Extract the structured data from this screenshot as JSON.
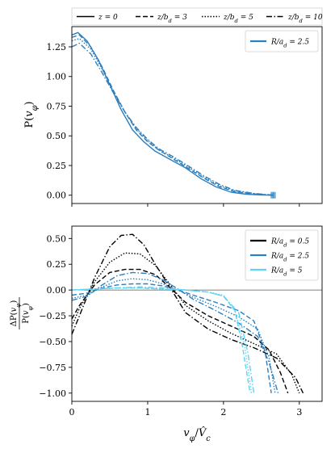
{
  "chart_data": [
    {
      "type": "line",
      "ylabel": "P(v_φ)",
      "xlim": [
        0,
        3.3
      ],
      "ylim": [
        -0.07,
        1.42
      ],
      "yticks": [
        "0.00",
        "0.25",
        "0.50",
        "0.75",
        "1.00",
        "1.25"
      ],
      "ytick_values": [
        0,
        0.25,
        0.5,
        0.75,
        1.0,
        1.25
      ],
      "legend_top": [
        {
          "label": "z = 0",
          "dash": "solid"
        },
        {
          "label": "z/b_d = 3",
          "dash": "dashed"
        },
        {
          "label": "z/b_d = 5",
          "dash": "dotted"
        },
        {
          "label": "z/b_d = 10",
          "dash": "dashdot"
        }
      ],
      "legend": [
        {
          "label": "R/a_d = 2.5",
          "color": "#2d7fbd"
        }
      ],
      "legend_position": "top-right",
      "series": [
        {
          "name": "R/a_d = 2.5",
          "dash": "solid",
          "color": "#2d7fbd",
          "x": [
            0.0,
            0.08,
            0.2,
            0.35,
            0.5,
            0.65,
            0.8,
            0.95,
            1.1,
            1.3,
            1.5,
            1.7,
            1.9,
            2.1,
            2.3,
            2.5,
            2.65
          ],
          "y": [
            1.35,
            1.37,
            1.3,
            1.14,
            0.93,
            0.72,
            0.55,
            0.45,
            0.37,
            0.3,
            0.23,
            0.14,
            0.07,
            0.025,
            0.008,
            0.002,
            0.0
          ]
        },
        {
          "name": "",
          "dash": "dashed",
          "color": "#2d7fbd",
          "x": [
            0.0,
            0.1,
            0.25,
            0.4,
            0.55,
            0.7,
            0.85,
            1.0,
            1.15,
            1.35,
            1.55,
            1.75,
            1.95,
            2.15,
            2.4,
            2.63
          ],
          "y": [
            1.33,
            1.35,
            1.25,
            1.08,
            0.88,
            0.7,
            0.55,
            0.45,
            0.38,
            0.3,
            0.22,
            0.14,
            0.07,
            0.03,
            0.01,
            0.0
          ]
        },
        {
          "name": "",
          "dash": "dotted",
          "color": "#2d7fbd",
          "x": [
            0.0,
            0.1,
            0.25,
            0.4,
            0.55,
            0.7,
            0.85,
            1.0,
            1.15,
            1.35,
            1.55,
            1.75,
            1.95,
            2.15,
            2.4,
            2.66
          ],
          "y": [
            1.3,
            1.32,
            1.23,
            1.06,
            0.87,
            0.7,
            0.56,
            0.46,
            0.38,
            0.31,
            0.23,
            0.15,
            0.08,
            0.035,
            0.012,
            0.0
          ]
        },
        {
          "name": "",
          "dash": "dashdot",
          "color": "#2d7fbd",
          "x": [
            0.0,
            0.1,
            0.25,
            0.4,
            0.55,
            0.7,
            0.85,
            1.0,
            1.15,
            1.35,
            1.55,
            1.75,
            1.95,
            2.15,
            2.4,
            2.68
          ],
          "y": [
            1.25,
            1.28,
            1.19,
            1.03,
            0.86,
            0.7,
            0.57,
            0.47,
            0.39,
            0.32,
            0.24,
            0.16,
            0.09,
            0.04,
            0.015,
            0.0
          ]
        }
      ]
    },
    {
      "type": "line",
      "xlabel": "v_φ / V̂_c",
      "ylabel": "ΔP(v_φ) / P(v_φ)",
      "xlim": [
        0,
        3.3
      ],
      "ylim": [
        -1.08,
        0.62
      ],
      "xticks": [
        "0",
        "1",
        "2",
        "3"
      ],
      "xtick_values": [
        0,
        1,
        2,
        3
      ],
      "yticks": [
        "0.50",
        "0.25",
        "0.00",
        "−0.25",
        "−0.50",
        "−0.75",
        "−1.00"
      ],
      "ytick_values": [
        0.5,
        0.25,
        0.0,
        -0.25,
        -0.5,
        -0.75,
        -1.0
      ],
      "legend": [
        {
          "label": "R/a_d = 0.5",
          "color": "#000000"
        },
        {
          "label": "R/a_d = 2.5",
          "color": "#2d7fbd"
        },
        {
          "label": "R/a_d = 5",
          "color": "#5fd4f4"
        }
      ],
      "legend_position": "top-right",
      "series": [
        {
          "name": "",
          "dash": "dashed",
          "color": "#000000",
          "x": [
            0.0,
            0.1,
            0.3,
            0.5,
            0.7,
            0.9,
            1.1,
            1.3,
            1.5,
            1.8,
            2.1,
            2.4,
            2.6,
            2.75,
            2.85
          ],
          "y": [
            -0.28,
            -0.15,
            0.05,
            0.17,
            0.2,
            0.2,
            0.15,
            0.02,
            -0.12,
            -0.25,
            -0.35,
            -0.45,
            -0.58,
            -0.8,
            -1.0
          ]
        },
        {
          "name": "",
          "dash": "dotted",
          "color": "#000000",
          "x": [
            0.0,
            0.1,
            0.3,
            0.5,
            0.7,
            0.9,
            1.1,
            1.3,
            1.5,
            1.8,
            2.1,
            2.4,
            2.7,
            2.9,
            3.0
          ],
          "y": [
            -0.35,
            -0.18,
            0.08,
            0.27,
            0.36,
            0.35,
            0.24,
            0.05,
            -0.15,
            -0.3,
            -0.42,
            -0.52,
            -0.62,
            -0.82,
            -1.0
          ]
        },
        {
          "name": "",
          "dash": "dashdot",
          "color": "#000000",
          "x": [
            0.0,
            0.1,
            0.3,
            0.5,
            0.65,
            0.8,
            0.95,
            1.1,
            1.3,
            1.5,
            1.8,
            2.1,
            2.4,
            2.7,
            2.95,
            3.05
          ],
          "y": [
            -0.43,
            -0.25,
            0.12,
            0.42,
            0.53,
            0.54,
            0.44,
            0.25,
            0.02,
            -0.22,
            -0.38,
            -0.48,
            -0.56,
            -0.66,
            -0.85,
            -1.0
          ]
        },
        {
          "name": "",
          "dash": "dashed",
          "color": "#2d7fbd",
          "x": [
            0.0,
            0.2,
            0.4,
            0.6,
            0.8,
            1.0,
            1.2,
            1.4,
            1.6,
            1.9,
            2.2,
            2.4,
            2.55,
            2.63
          ],
          "y": [
            -0.05,
            -0.03,
            0.02,
            0.05,
            0.06,
            0.06,
            0.04,
            0.0,
            -0.05,
            -0.12,
            -0.2,
            -0.3,
            -0.6,
            -1.0
          ]
        },
        {
          "name": "",
          "dash": "dotted",
          "color": "#2d7fbd",
          "x": [
            0.0,
            0.2,
            0.4,
            0.6,
            0.8,
            1.0,
            1.2,
            1.4,
            1.6,
            1.9,
            2.2,
            2.45,
            2.6,
            2.68
          ],
          "y": [
            -0.08,
            -0.05,
            0.03,
            0.09,
            0.11,
            0.1,
            0.06,
            0.0,
            -0.07,
            -0.16,
            -0.26,
            -0.38,
            -0.65,
            -1.0
          ]
        },
        {
          "name": "",
          "dash": "dashdot",
          "color": "#2d7fbd",
          "x": [
            0.0,
            0.2,
            0.4,
            0.6,
            0.8,
            1.0,
            1.2,
            1.4,
            1.6,
            1.9,
            2.2,
            2.45,
            2.6,
            2.72
          ],
          "y": [
            -0.1,
            -0.06,
            0.05,
            0.14,
            0.17,
            0.16,
            0.1,
            0.01,
            -0.09,
            -0.2,
            -0.32,
            -0.45,
            -0.7,
            -1.0
          ]
        },
        {
          "name": "",
          "dash": "dashed",
          "color": "#5fd4f4",
          "x": [
            0.0,
            0.3,
            0.6,
            0.9,
            1.2,
            1.5,
            1.8,
            2.0,
            2.15,
            2.25,
            2.35
          ],
          "y": [
            0.0,
            0.01,
            0.02,
            0.02,
            0.01,
            0.0,
            -0.02,
            -0.06,
            -0.2,
            -0.55,
            -1.0
          ]
        },
        {
          "name": "",
          "dash": "dotted",
          "color": "#5fd4f4",
          "x": [
            0.0,
            0.3,
            0.6,
            0.9,
            1.2,
            1.5,
            1.8,
            2.0,
            2.15,
            2.28,
            2.37
          ],
          "y": [
            0.0,
            0.01,
            0.02,
            0.02,
            0.01,
            0.0,
            -0.02,
            -0.05,
            -0.2,
            -0.55,
            -1.0
          ]
        },
        {
          "name": "",
          "dash": "dashdot",
          "color": "#5fd4f4",
          "x": [
            0.0,
            0.3,
            0.6,
            0.9,
            1.2,
            1.5,
            1.8,
            2.0,
            2.2,
            2.32,
            2.4
          ],
          "y": [
            0.0,
            0.01,
            0.02,
            0.03,
            0.02,
            0.0,
            -0.02,
            -0.06,
            -0.22,
            -0.6,
            -1.0
          ]
        }
      ]
    }
  ]
}
